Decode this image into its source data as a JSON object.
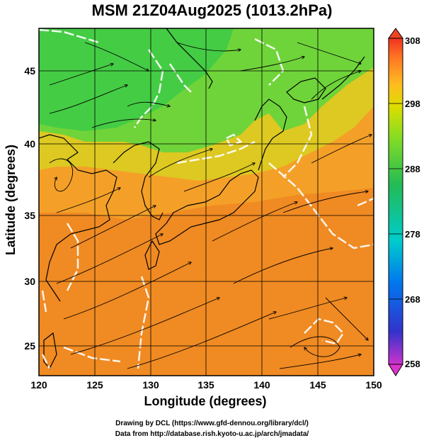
{
  "title": "MSM 21Z04Aug2025 (1013.2hPa)",
  "axes": {
    "xlabel": "Longitude (degrees)",
    "ylabel": "Latitude  (degrees)",
    "x_ticks": [
      "120",
      "125",
      "130",
      "135",
      "140",
      "145",
      "150"
    ],
    "y_ticks": [
      "25",
      "30",
      "35",
      "40",
      "45"
    ],
    "x_range": [
      120,
      150
    ],
    "y_range": [
      22.4,
      47.6
    ]
  },
  "colorbar": {
    "ticks": [
      "308",
      "298",
      "288",
      "278",
      "268",
      "258"
    ],
    "range": [
      258,
      308
    ],
    "colors": [
      "#cc33cc",
      "#3333cc",
      "#0077ee",
      "#00cccc",
      "#22bb55",
      "#88dd22",
      "#dddd00",
      "#ffbb22",
      "#ff7722",
      "#ee3322"
    ]
  },
  "credits": {
    "line1": "Drawing by DCL (https://www.gfd-dennou.org/library/dcl/)",
    "line2": "Data from http://database.rish.kyoto-u.ac.jp/arch/jmadata/"
  }
}
